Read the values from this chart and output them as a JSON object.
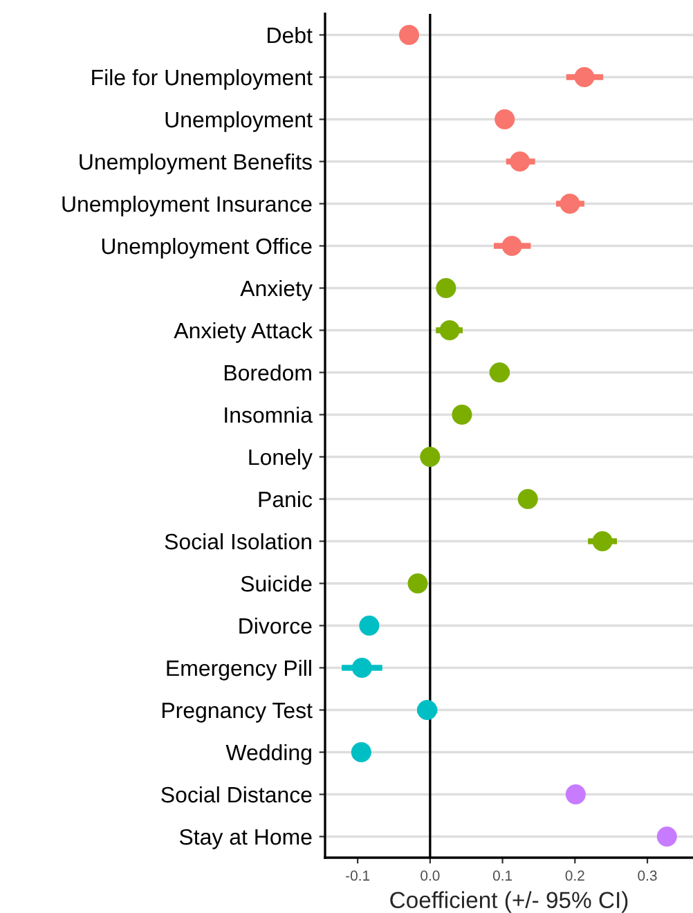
{
  "chart_data": {
    "type": "scatter",
    "orientation": "horizontal",
    "xlabel": "Coefficient (+/- 95% CI)",
    "categories": [
      "Debt",
      "File for Unemployment",
      "Unemployment",
      "Unemployment Benefits",
      "Unemployment Insurance",
      "Unemployment Office",
      "Anxiety",
      "Anxiety Attack",
      "Boredom",
      "Insomnia",
      "Lonely",
      "Panic",
      "Social Isolation",
      "Suicide",
      "Divorce",
      "Emergency Pill",
      "Pregnancy Test",
      "Wedding",
      "Social Distance",
      "Stay at Home"
    ],
    "series": [
      {
        "color": "#f8766d",
        "values": [
          -0.029,
          0.213,
          0.103,
          0.124,
          0.193,
          0.113,
          null,
          null,
          null,
          null,
          null,
          null,
          null,
          null,
          null,
          null,
          null,
          null,
          null,
          null
        ],
        "errors": [
          [
            -0.04,
            -0.018
          ],
          [
            0.188,
            0.239
          ],
          [
            0.092,
            0.116
          ],
          [
            0.105,
            0.145
          ],
          [
            0.174,
            0.213
          ],
          [
            0.088,
            0.139
          ],
          null,
          null,
          null,
          null,
          null,
          null,
          null,
          null,
          null,
          null,
          null,
          null,
          null,
          null
        ]
      },
      {
        "color": "#7cae00",
        "values": [
          null,
          null,
          null,
          null,
          null,
          null,
          0.022,
          0.027,
          0.096,
          0.044,
          0.0,
          0.135,
          0.238,
          -0.017,
          null,
          null,
          null,
          null,
          null,
          null
        ],
        "errors": [
          null,
          null,
          null,
          null,
          null,
          null,
          [
            0.012,
            0.035
          ],
          [
            0.008,
            0.045
          ],
          [
            0.082,
            0.11
          ],
          [
            0.031,
            0.055
          ],
          [
            -0.011,
            0.012
          ],
          [
            0.123,
            0.148
          ],
          [
            0.218,
            0.258
          ],
          [
            -0.027,
            -0.005
          ],
          null,
          null,
          null,
          null,
          null,
          null
        ]
      },
      {
        "color": "#00bfc4",
        "values": [
          null,
          null,
          null,
          null,
          null,
          null,
          null,
          null,
          null,
          null,
          null,
          null,
          null,
          null,
          -0.084,
          -0.094,
          -0.004,
          -0.095,
          null,
          null
        ],
        "errors": [
          null,
          null,
          null,
          null,
          null,
          null,
          null,
          null,
          null,
          null,
          null,
          null,
          null,
          null,
          [
            -0.096,
            -0.071
          ],
          [
            -0.122,
            -0.066
          ],
          [
            -0.018,
            0.01
          ],
          [
            -0.106,
            -0.083
          ],
          null,
          null
        ]
      },
      {
        "color": "#c77cff",
        "values": [
          null,
          null,
          null,
          null,
          null,
          null,
          null,
          null,
          null,
          null,
          null,
          null,
          null,
          null,
          null,
          null,
          null,
          null,
          0.201,
          0.327
        ],
        "errors": [
          null,
          null,
          null,
          null,
          null,
          null,
          null,
          null,
          null,
          null,
          null,
          null,
          null,
          null,
          null,
          null,
          null,
          null,
          [
            0.189,
            0.214
          ],
          [
            0.315,
            0.339
          ]
        ]
      }
    ],
    "xlim": [
      -0.145,
      0.363
    ],
    "xticks": [
      {
        "value": -0.1,
        "label": "-0.1"
      },
      {
        "value": 0.0,
        "label": "0.0"
      },
      {
        "value": 0.1,
        "label": "0.1"
      },
      {
        "value": 0.2,
        "label": "0.2"
      },
      {
        "value": 0.3,
        "label": "0.3"
      }
    ],
    "ref_lines": [
      {
        "axis": "x",
        "value": 0,
        "color": "#000000"
      }
    ],
    "grid": "y",
    "marker": "circle",
    "legend": false
  }
}
